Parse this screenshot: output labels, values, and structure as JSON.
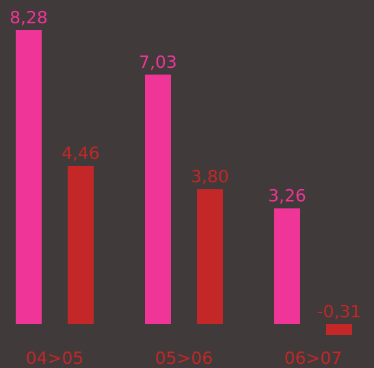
{
  "chart_data": {
    "type": "bar",
    "categories": [
      "04>05",
      "05>06",
      "06>07"
    ],
    "series": [
      {
        "color": "#ef3597",
        "values": [
          8.28,
          7.03,
          3.26
        ],
        "value_labels": [
          "8,28",
          "7,03",
          "3,26"
        ]
      },
      {
        "color": "#c42727",
        "values": [
          4.46,
          3.8,
          -0.31
        ],
        "value_labels": [
          "4,46",
          "3,80",
          "-0,31"
        ]
      }
    ],
    "category_label_color": "#c42727"
  }
}
